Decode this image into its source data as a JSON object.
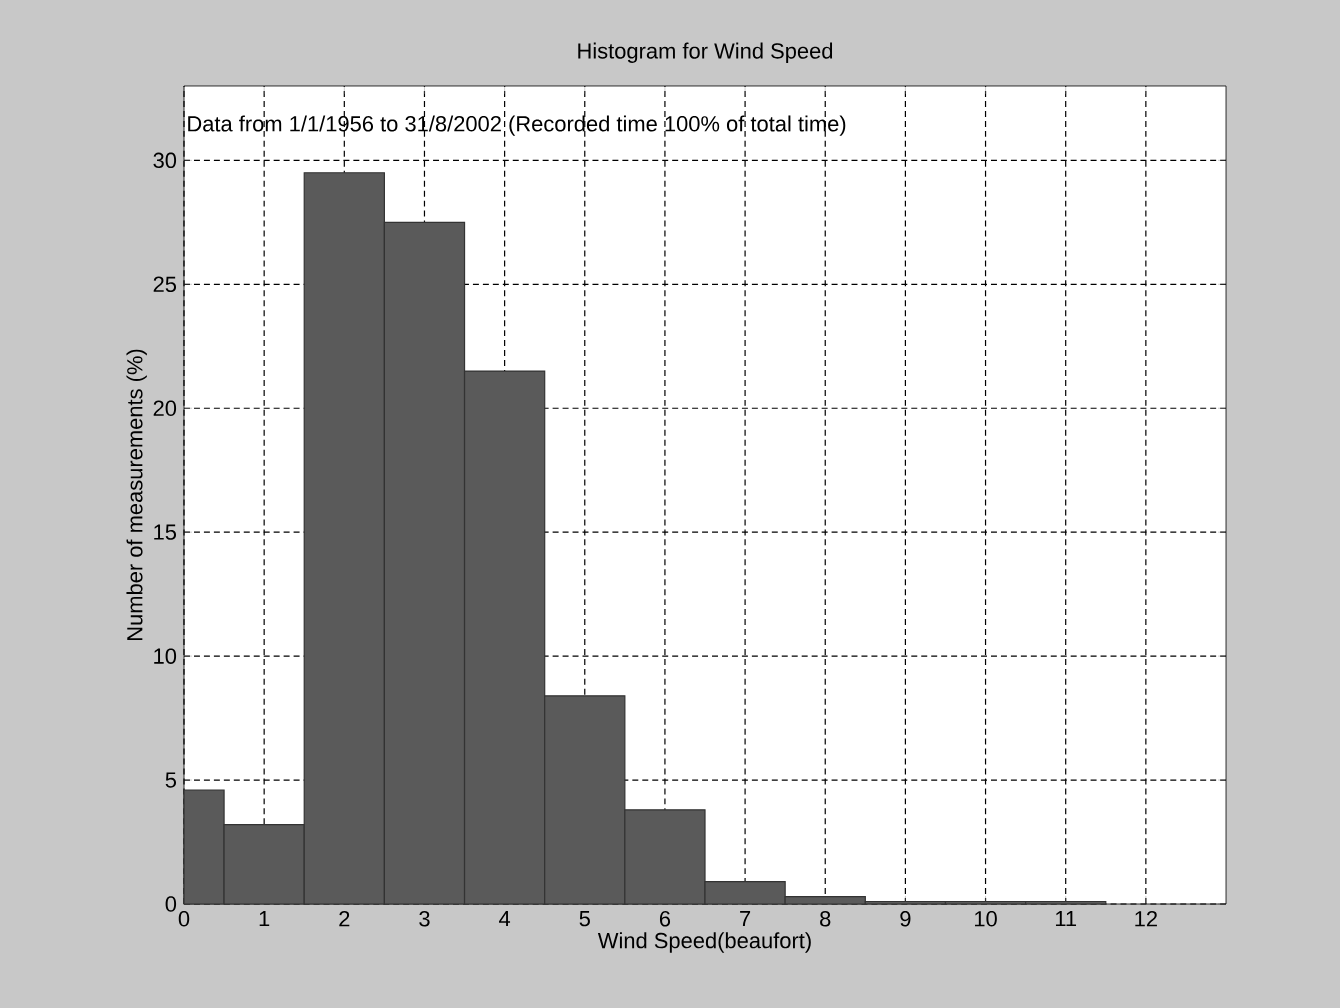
{
  "chart_data": {
    "type": "histogram",
    "title": "Histogram for Wind Speed",
    "xlabel": "Wind Speed(beaufort)",
    "ylabel": "Number of measurements (%)",
    "annotations": [
      "Data from 1/1/1956 to 31/8/2002 (Recorded time 100% of total time)"
    ],
    "bins": [
      0,
      0.5,
      1.5,
      2.5,
      3.5,
      4.5,
      5.5,
      6.5,
      7.5,
      8.5,
      9.5,
      10.5,
      11.5
    ],
    "values": [
      4.6,
      3.2,
      29.5,
      27.5,
      21.5,
      8.4,
      3.8,
      0.9,
      0.3,
      0.1,
      0.1,
      0.1
    ],
    "color": "#5a5a5a",
    "xlim": [
      0,
      13
    ],
    "ylim": [
      0,
      33
    ],
    "xticks": [
      0,
      1,
      2,
      3,
      4,
      5,
      6,
      7,
      8,
      9,
      10,
      11,
      12
    ],
    "yticks": [
      0,
      5,
      10,
      15,
      20,
      25,
      30
    ],
    "grid": true,
    "line_style": "dashed"
  }
}
